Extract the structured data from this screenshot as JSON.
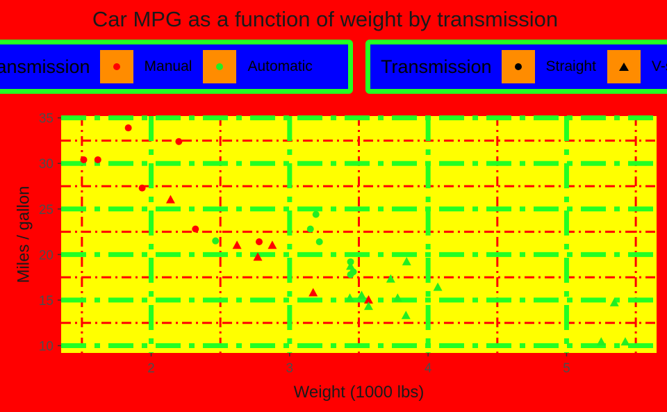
{
  "title": "Car MPG as a function of weight by transmission",
  "legends": {
    "color": {
      "title": "Transmission",
      "items": [
        {
          "label": "Manual",
          "color": "#ff0000"
        },
        {
          "label": "Automatic",
          "color": "#22ee22"
        }
      ]
    },
    "shape": {
      "title": "Transmission",
      "items": [
        {
          "label": "Straight",
          "shape": "circle"
        },
        {
          "label": "V-shaped",
          "shape": "triangle"
        }
      ]
    }
  },
  "colors": {
    "background": "#ff0000",
    "panel": "#ffff00",
    "major_grid": "#22ff22",
    "minor_grid": "#ff0000",
    "legend_bg": "#0000ff",
    "legend_border": "#22ff22",
    "legend_key": "#ff8c00",
    "manual": "#ff0000",
    "automatic": "#22ee22"
  },
  "chart_data": {
    "type": "scatter",
    "title": "Car MPG as a function of weight by transmission",
    "xlabel": "Weight (1000 lbs)",
    "ylabel": "Miles / gallon",
    "xlim": [
      1.35,
      5.65
    ],
    "ylim": [
      9.2,
      35.2
    ],
    "x_ticks": [
      2,
      3,
      4,
      5
    ],
    "y_ticks": [
      10,
      15,
      20,
      25,
      30,
      35
    ],
    "x_minor": [
      1.5,
      2.5,
      3.5,
      4.5,
      5.5
    ],
    "y_minor": [
      12.5,
      17.5,
      22.5,
      27.5,
      32.5
    ],
    "legend_position": "top",
    "series": [
      {
        "name": "Manual / Straight",
        "transmission": "Manual",
        "engine": "Straight",
        "points": [
          [
            2.32,
            22.8
          ],
          [
            2.2,
            32.4
          ],
          [
            1.615,
            30.4
          ],
          [
            1.835,
            33.9
          ],
          [
            1.935,
            27.3
          ],
          [
            1.513,
            30.4
          ],
          [
            2.78,
            21.4
          ]
        ]
      },
      {
        "name": "Manual / V-shaped",
        "transmission": "Manual",
        "engine": "V-shaped",
        "points": [
          [
            2.62,
            21.0
          ],
          [
            2.875,
            21.0
          ],
          [
            2.14,
            26.0
          ],
          [
            3.17,
            15.8
          ],
          [
            2.77,
            19.7
          ],
          [
            3.57,
            15.0
          ]
        ]
      },
      {
        "name": "Automatic / Straight",
        "transmission": "Automatic",
        "engine": "Straight",
        "points": [
          [
            3.215,
            21.4
          ],
          [
            3.46,
            18.1
          ],
          [
            3.19,
            24.4
          ],
          [
            3.15,
            22.8
          ],
          [
            3.44,
            19.2
          ],
          [
            3.44,
            17.8
          ],
          [
            2.465,
            21.5
          ]
        ]
      },
      {
        "name": "Automatic / V-shaped",
        "transmission": "Automatic",
        "engine": "V-shaped",
        "points": [
          [
            3.44,
            18.7
          ],
          [
            3.57,
            14.3
          ],
          [
            4.07,
            16.4
          ],
          [
            3.73,
            17.3
          ],
          [
            3.78,
            15.2
          ],
          [
            5.25,
            10.4
          ],
          [
            5.424,
            10.4
          ],
          [
            5.345,
            14.7
          ],
          [
            3.52,
            15.5
          ],
          [
            3.435,
            15.2
          ],
          [
            3.84,
            13.3
          ],
          [
            3.845,
            19.2
          ]
        ]
      }
    ]
  }
}
